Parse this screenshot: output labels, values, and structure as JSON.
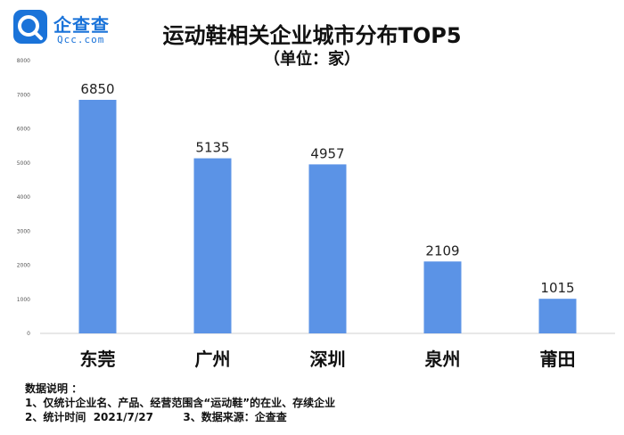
{
  "logo": {
    "name_cn": "企查查",
    "name_en": "Qcc.com",
    "brand_color": "#1a73d9"
  },
  "header": {
    "title": "运动鞋相关企业城市分布TOP5",
    "subtitle": "（单位：家）"
  },
  "notes": {
    "heading": "数据说明 ：",
    "line1": "1、仅统计企业名、产品、经营范围含“运动鞋”的在业、存续企业",
    "line2": "2、统计时间  2021/7/27        3、数据来源：企查查"
  },
  "chart_data": {
    "type": "bar",
    "categories": [
      "东莞",
      "广州",
      "深圳",
      "泉州",
      "莆田"
    ],
    "values": [
      6850,
      5135,
      4957,
      2109,
      1015
    ],
    "ylim": [
      0,
      8000
    ],
    "yticks": [
      0,
      1000,
      2000,
      3000,
      4000,
      5000,
      6000,
      7000,
      8000
    ],
    "grid": false,
    "bar_color": "#5b93e6",
    "legend": "none"
  }
}
